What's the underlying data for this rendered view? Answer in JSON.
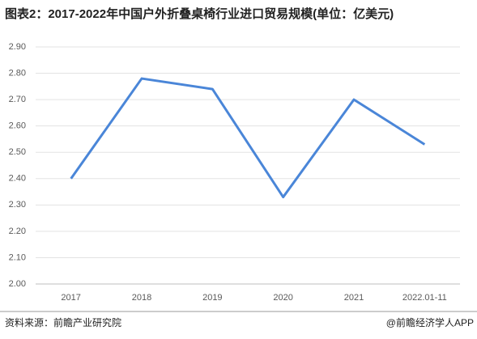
{
  "chart_data": {
    "type": "line",
    "title": "图表2：2017-2022年中国户外折叠桌椅行业进口贸易规模(单位：亿美元)",
    "categories": [
      "2017",
      "2018",
      "2019",
      "2020",
      "2021",
      "2022.01-11"
    ],
    "values": [
      2.4,
      2.78,
      2.74,
      2.33,
      2.7,
      2.53
    ],
    "color": "#4a86d8",
    "ylim": [
      2.0,
      2.9
    ],
    "yticks": [
      {
        "value": 2.0,
        "label": "2.00"
      },
      {
        "value": 2.1,
        "label": "2.10"
      },
      {
        "value": 2.2,
        "label": "2.20"
      },
      {
        "value": 2.3,
        "label": "2.30"
      },
      {
        "value": 2.4,
        "label": "2.40"
      },
      {
        "value": 2.5,
        "label": "2.50"
      },
      {
        "value": 2.6,
        "label": "2.60"
      },
      {
        "value": 2.7,
        "label": "2.70"
      },
      {
        "value": 2.8,
        "label": "2.80"
      },
      {
        "value": 2.9,
        "label": "2.90"
      }
    ],
    "grid": true,
    "source": "资料来源：前瞻产业研究院",
    "credit": "@前瞻经济学人APP"
  }
}
